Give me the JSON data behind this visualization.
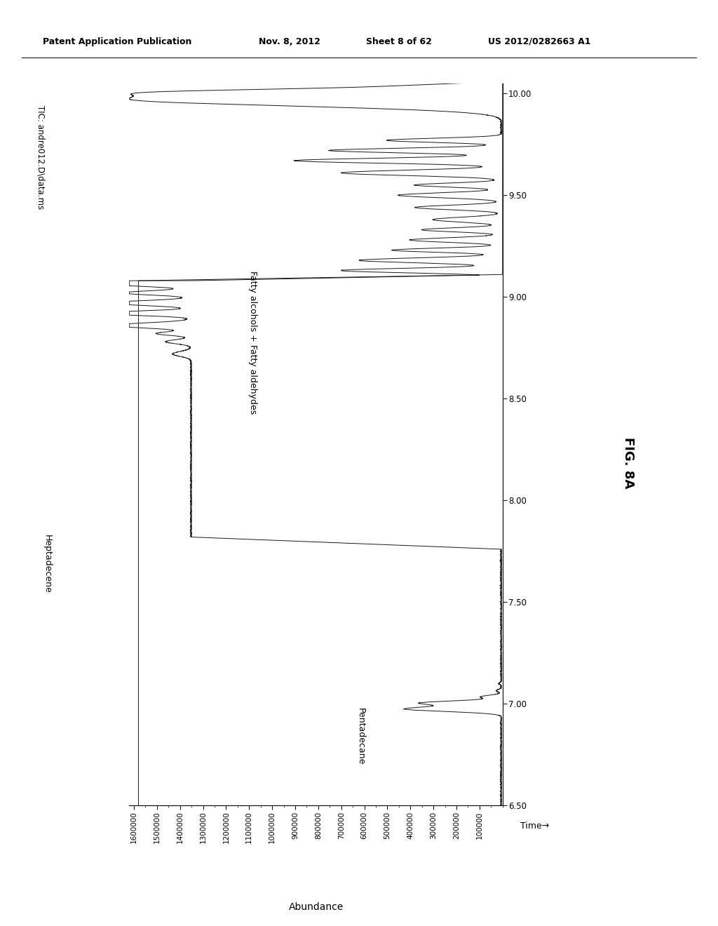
{
  "header_left": "Patent Application Publication",
  "header_mid": "Nov. 8, 2012",
  "header_sheet": "Sheet 8 of 62",
  "header_right": "US 2012/0282663 A1",
  "fig_label": "FIG. 8A",
  "tic_label": "TIC: andre012.D\\data.ms",
  "xlabel": "Abundance",
  "time_arrow": "Time→",
  "annotation_heptadecene": "Heptadecene",
  "annotation_pentadecane": "Pentadecane",
  "annotation_fatty": "Fatty alcohols + Fatty aldehydes",
  "background_color": "#ffffff",
  "line_color": "#1a1a1a",
  "time_min": 6.5,
  "time_max": 10.05,
  "abundance_min": 0,
  "abundance_max": 1600000,
  "heptadecene_level": 1350000,
  "upper_level": 1580000,
  "tick_values_x": [
    1600000,
    1500000,
    1400000,
    1300000,
    1200000,
    1100000,
    1000000,
    900000,
    800000,
    700000,
    600000,
    500000,
    400000,
    300000,
    200000,
    100000
  ],
  "tick_labels_x": [
    "1600000",
    "1500000",
    "1400000",
    "1300000",
    "1200000",
    "1100000",
    "1000000",
    "900000",
    "800000",
    "700000",
    "600000",
    "500000",
    "400000",
    "300000",
    "200000",
    "100000"
  ],
  "tick_values_y": [
    6.5,
    7.0,
    7.5,
    8.0,
    8.5,
    9.0,
    9.5,
    10.0
  ],
  "tick_labels_y": [
    "6.50",
    "7.00",
    "7.50",
    "8.00",
    "8.50",
    "9.00",
    "9.50",
    "10.00"
  ]
}
